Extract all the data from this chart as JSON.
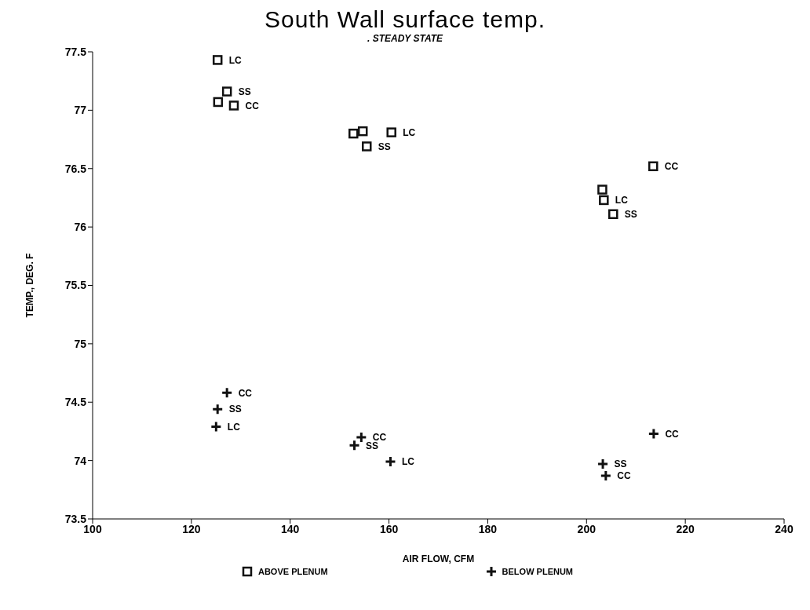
{
  "chart_data": {
    "type": "scatter",
    "title": "South Wall surface temp.",
    "subtitle": ". STEADY STATE",
    "xlabel": "AIR FLOW, CFM",
    "ylabel": "TEMP., DEG. F",
    "xlim": [
      100,
      240
    ],
    "xticks": [
      100,
      120,
      140,
      160,
      180,
      200,
      220,
      240
    ],
    "ylim": [
      73.5,
      77.5
    ],
    "yticks": [
      73.5,
      74,
      74.5,
      75,
      75.5,
      76,
      76.5,
      77,
      77.5
    ],
    "grid": false,
    "legend": "bottom",
    "series": [
      {
        "name": "ABOVE PLENUM",
        "color": "#111111",
        "marker": "square",
        "x": [
          125.3,
          125.4,
          127.2,
          128.6,
          152.8,
          154.7,
          160.5,
          155.5,
          213.5,
          203.2,
          203.5,
          205.4
        ],
        "values": [
          77.43,
          77.07,
          77.16,
          77.04,
          76.8,
          76.82,
          76.81,
          76.69,
          76.52,
          76.32,
          76.23,
          76.11
        ],
        "value_labels": [
          "LC",
          null,
          "SS",
          "CC",
          null,
          null,
          "LC",
          "SS",
          "CC",
          null,
          "LC",
          "SS"
        ]
      },
      {
        "name": "BELOW PLENUM",
        "color": "#111111",
        "marker": "cross",
        "x": [
          127.2,
          125.3,
          125,
          154.4,
          153,
          160.3,
          213.6,
          203.3,
          203.9
        ],
        "values": [
          74.58,
          74.44,
          74.29,
          74.2,
          74.13,
          73.99,
          74.23,
          73.97,
          73.87
        ],
        "value_labels": [
          "CC",
          "SS",
          "LC",
          "CC",
          "SS",
          "LC",
          "CC",
          "SS",
          "CC"
        ]
      }
    ]
  }
}
